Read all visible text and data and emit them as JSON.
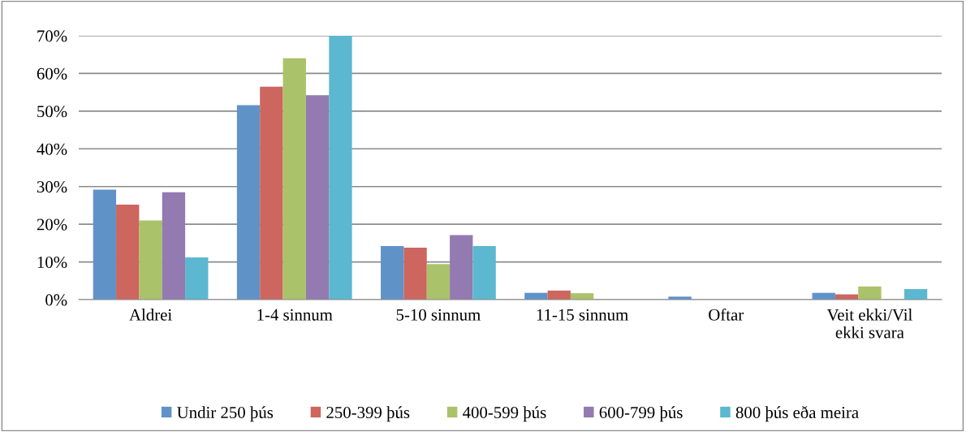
{
  "chart_data": {
    "type": "bar",
    "categories": [
      "Aldrei",
      "1-4 sinnum",
      "5-10 sinnum",
      "11-15 sinnum",
      "Oftar",
      "Veit ekki/Vil\nekki svara"
    ],
    "series": [
      {
        "name": "Undir 250 þús",
        "color": "#5f93c8",
        "values": [
          29.2,
          51.6,
          14.2,
          1.8,
          0.8,
          1.8
        ]
      },
      {
        "name": "250-399 þús",
        "color": "#cc665e",
        "values": [
          25.2,
          56.5,
          13.8,
          2.4,
          0,
          1.4
        ]
      },
      {
        "name": "400-599 þús",
        "color": "#aac26a",
        "values": [
          21.0,
          64.0,
          9.4,
          1.7,
          0,
          3.5
        ]
      },
      {
        "name": "600-799 þús",
        "color": "#937ab1",
        "values": [
          28.5,
          54.2,
          17.1,
          0,
          0,
          0
        ]
      },
      {
        "name": "800 þús eða meira",
        "color": "#5bb8d0",
        "values": [
          11.2,
          70.0,
          14.2,
          0,
          0,
          2.8
        ]
      }
    ],
    "ylim": [
      0,
      70
    ],
    "yticks": [
      {
        "value": 0,
        "label": "0%"
      },
      {
        "value": 10,
        "label": "10%"
      },
      {
        "value": 20,
        "label": "20%"
      },
      {
        "value": 30,
        "label": "30%"
      },
      {
        "value": 40,
        "label": "40%"
      },
      {
        "value": 50,
        "label": "50%"
      },
      {
        "value": 60,
        "label": "60%"
      },
      {
        "value": 70,
        "label": "70%"
      }
    ],
    "grid": "y",
    "legend": "bottom"
  }
}
